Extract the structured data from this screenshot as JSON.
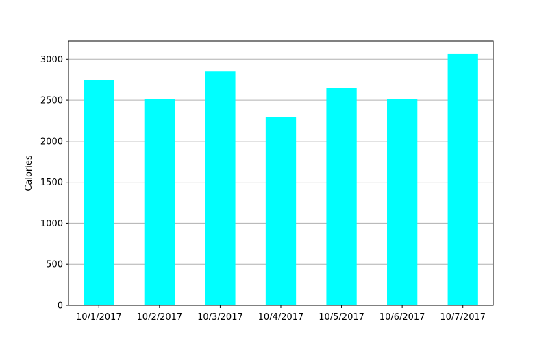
{
  "chart_data": {
    "type": "bar",
    "title": "",
    "xlabel": "",
    "ylabel": "Calories",
    "categories": [
      "10/1/2017",
      "10/2/2017",
      "10/3/2017",
      "10/4/2017",
      "10/5/2017",
      "10/6/2017",
      "10/7/2017"
    ],
    "values": [
      2750,
      2510,
      2850,
      2300,
      2650,
      2510,
      3070
    ],
    "ylim": [
      0,
      3220
    ],
    "yticks": [
      0,
      500,
      1000,
      1500,
      2000,
      2500,
      3000
    ],
    "grid": "horizontal",
    "legend": "none",
    "bar_color": "#00ffff"
  }
}
